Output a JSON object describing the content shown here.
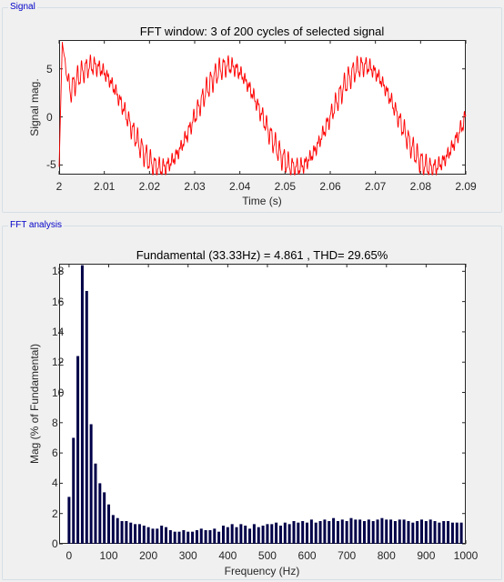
{
  "panels": {
    "signal_label": "Signal",
    "fft_label": "FFT analysis"
  },
  "colors": {
    "signal_line": "#ff0000",
    "fft_bar": "#000048",
    "panel_title": "#0000c8"
  },
  "chart_data": [
    {
      "type": "line",
      "title": "FFT window: 3 of 200 cycles of selected signal",
      "xlabel": "Time (s)",
      "ylabel": "Signal mag.",
      "xlim": [
        2,
        2.09
      ],
      "ylim": [
        -6,
        8
      ],
      "xticks": [
        "2",
        "2.01",
        "2.02",
        "2.03",
        "2.04",
        "2.05",
        "2.06",
        "2.07",
        "2.08",
        "2.09"
      ],
      "yticks": [
        "5",
        "0",
        "-5"
      ],
      "series": [
        {
          "fundamental_hz": 33.33,
          "amplitude": 5.3,
          "ripple_amplitude": 1.1,
          "x_start": 2,
          "x_end": 2.09,
          "sample_points": [
            [
              2.0,
              -5.2
            ],
            [
              2.0007,
              7.8
            ],
            [
              2.0025,
              3.0
            ],
            [
              2.0075,
              5.3
            ],
            [
              2.0225,
              -5.3
            ],
            [
              2.0375,
              5.3
            ],
            [
              2.0525,
              -5.3
            ],
            [
              2.0675,
              5.3
            ],
            [
              2.0825,
              -5.3
            ],
            [
              2.09,
              4.6
            ]
          ]
        }
      ]
    },
    {
      "type": "bar",
      "title": "Fundamental (33.33Hz) = 4.861 , THD= 29.65%",
      "xlabel": "Frequency (Hz)",
      "ylabel": "Mag (% of Fundamental)",
      "xlim": [
        -25,
        1000
      ],
      "ylim": [
        0,
        18.5
      ],
      "xticks": [
        "0",
        "100",
        "200",
        "300",
        "400",
        "500",
        "600",
        "700",
        "800",
        "900",
        "1000"
      ],
      "yticks": [
        "0",
        "2",
        "4",
        "6",
        "8",
        "10",
        "12",
        "14",
        "16",
        "18"
      ],
      "bar_spacing_hz": 11.11,
      "values": [
        3.1,
        7.0,
        12.4,
        18.4,
        16.7,
        7.9,
        5.3,
        4.0,
        3.4,
        2.6,
        1.9,
        1.7,
        1.5,
        1.5,
        1.4,
        1.3,
        1.3,
        1.2,
        1.1,
        1.0,
        1.0,
        1.2,
        1.1,
        0.9,
        0.8,
        0.8,
        0.9,
        0.8,
        0.8,
        0.9,
        1.0,
        0.9,
        0.9,
        1.0,
        0.8,
        1.2,
        1.1,
        1.3,
        1.1,
        1.3,
        1.2,
        1.0,
        1.3,
        1.1,
        1.2,
        1.3,
        1.3,
        1.4,
        1.2,
        1.4,
        1.3,
        1.5,
        1.4,
        1.5,
        1.4,
        1.6,
        1.4,
        1.5,
        1.6,
        1.5,
        1.7,
        1.5,
        1.6,
        1.5,
        1.7,
        1.6,
        1.6,
        1.5,
        1.6,
        1.5,
        1.6,
        1.7,
        1.6,
        1.6,
        1.5,
        1.6,
        1.6,
        1.5,
        1.4,
        1.5,
        1.6,
        1.5,
        1.6,
        1.5,
        1.4,
        1.5,
        1.5,
        1.4,
        1.4,
        1.4
      ]
    }
  ]
}
